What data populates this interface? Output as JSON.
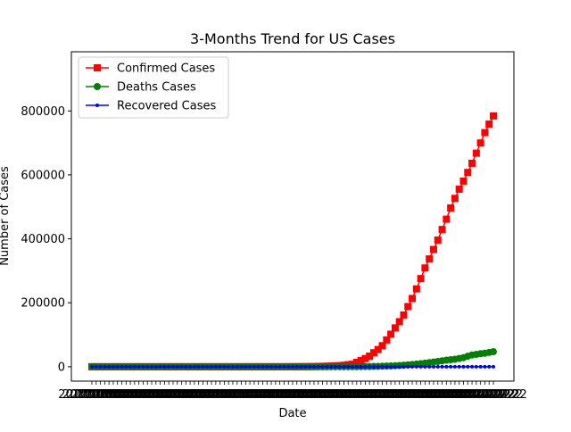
{
  "chart_data": {
    "type": "line",
    "title": "3-Months Trend for US Cases",
    "xlabel": "Date",
    "ylabel": "Number of Cases",
    "ylim": [
      -45000,
      985000
    ],
    "yticks": [
      0,
      200000,
      400000,
      600000,
      800000
    ],
    "ytick_labels": [
      "0",
      "200000",
      "400000",
      "600000",
      "800000"
    ],
    "x_count": 95,
    "xtick_label_text": "2020-02-22",
    "grid": false,
    "legend_position": "upper-left",
    "series": [
      {
        "name": "Confirmed Cases",
        "color": "#ff0000",
        "marker": "square",
        "values": [
          1,
          1,
          2,
          2,
          5,
          5,
          5,
          6,
          6,
          8,
          8,
          8,
          11,
          11,
          11,
          12,
          12,
          12,
          12,
          12,
          13,
          13,
          14,
          14,
          14,
          14,
          14,
          14,
          14,
          14,
          14,
          15,
          16,
          16,
          16,
          16,
          16,
          16,
          35,
          35,
          53,
          57,
          60,
          68,
          74,
          98,
          118,
          149,
          217,
          262,
          402,
          518,
          583,
          959,
          1281,
          1663,
          2179,
          2726,
          3499,
          4632,
          6421,
          7786,
          13680,
          19101,
          25493,
          33276,
          43847,
          53740,
          65778,
          83836,
          101657,
          121478,
          140886,
          161807,
          188172,
          213372,
          243453,
          275586,
          308850,
          337072,
          366667,
          396223,
          429052,
          461437,
          496535,
          526396,
          555313,
          580619,
          607670,
          636350,
          667801,
          699706,
          732197,
          758809,
          784326
        ]
      },
      {
        "name": "Deaths Cases",
        "color": "#008000",
        "marker": "circle",
        "values": [
          0,
          0,
          0,
          0,
          0,
          0,
          0,
          0,
          0,
          0,
          0,
          0,
          0,
          0,
          0,
          0,
          0,
          0,
          0,
          0,
          0,
          0,
          0,
          0,
          0,
          0,
          0,
          0,
          0,
          0,
          0,
          0,
          0,
          0,
          0,
          0,
          0,
          0,
          0,
          0,
          0,
          1,
          1,
          6,
          7,
          11,
          12,
          14,
          17,
          21,
          22,
          28,
          36,
          40,
          47,
          54,
          63,
          85,
          108,
          118,
          200,
          244,
          307,
          427,
          552,
          706,
          942,
          1209,
          1581,
          2026,
          2467,
          2978,
          3873,
          4757,
          5926,
          7087,
          8407,
          9619,
          11248,
          12894,
          14695,
          16478,
          18586,
          20463,
          22020,
          23529,
          25831,
          28325,
          32916,
          36773,
          38664,
          40661,
          42094,
          44845,
          46979
        ]
      },
      {
        "name": "Recovered Cases",
        "color": "#0000ff",
        "marker": "dot",
        "values": [
          0,
          0,
          0,
          0,
          0,
          0,
          0,
          0,
          0,
          0,
          0,
          0,
          0,
          0,
          0,
          0,
          0,
          0,
          0,
          0,
          0,
          0,
          0,
          0,
          0,
          0,
          0,
          0,
          0,
          0,
          0,
          0,
          0,
          0,
          0,
          0,
          0,
          0,
          0,
          0,
          0,
          0,
          0,
          0,
          0,
          0,
          0,
          0,
          0,
          0,
          0,
          0,
          0,
          0,
          0,
          0,
          0,
          0,
          0,
          0,
          0,
          0,
          0,
          0,
          0,
          0,
          0,
          0,
          0,
          0,
          0,
          0,
          0,
          0,
          0,
          0,
          0,
          0,
          0,
          0,
          0,
          0,
          0,
          0,
          0,
          0,
          0,
          0,
          0,
          0,
          0,
          0,
          0,
          0,
          0
        ]
      }
    ]
  }
}
